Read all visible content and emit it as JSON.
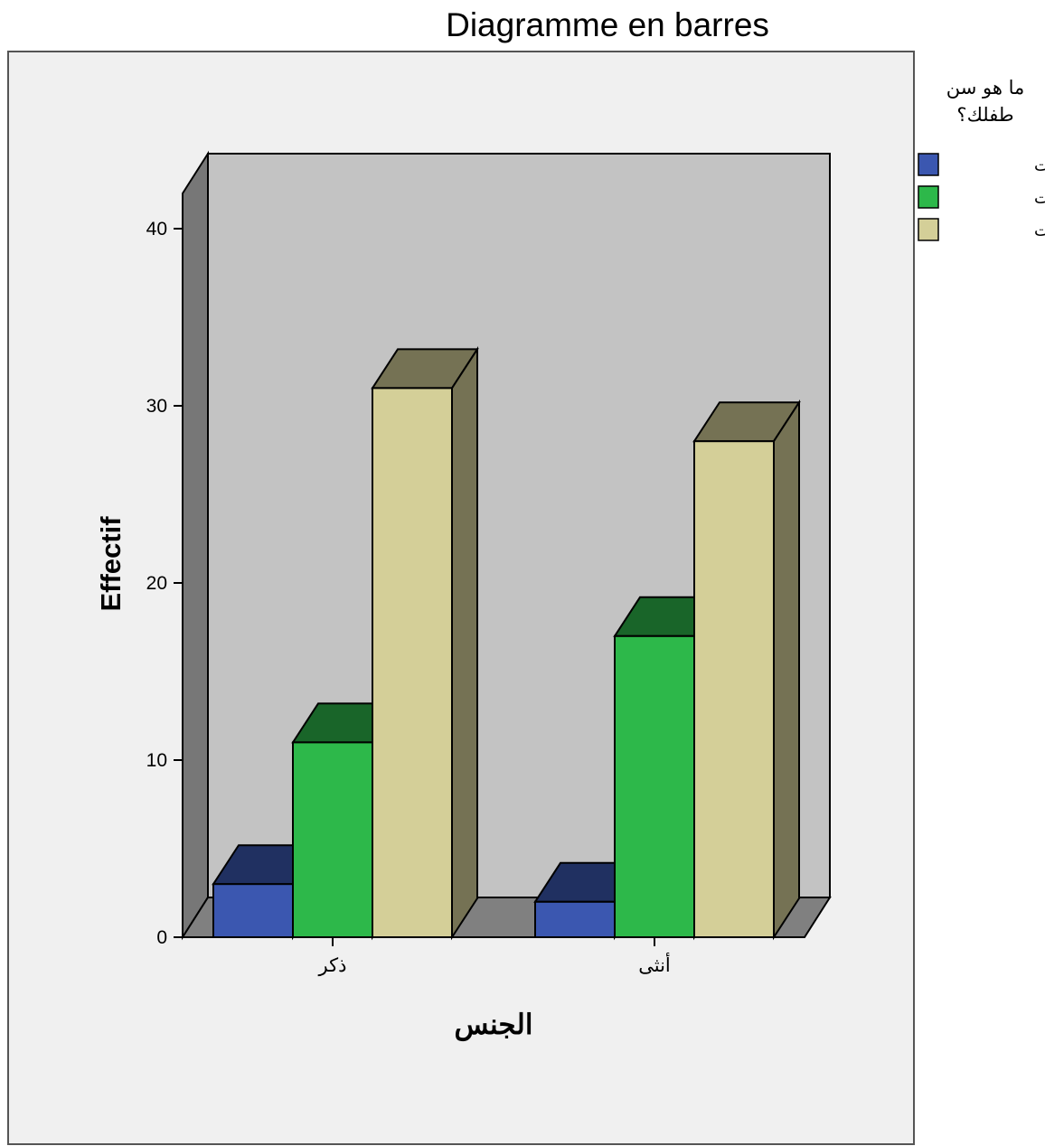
{
  "chart_data": {
    "type": "bar",
    "title": "Diagramme en barres",
    "xlabel": "الجنس",
    "ylabel": "Effectif",
    "categories": [
      "ذكر",
      "أنثى"
    ],
    "series": [
      {
        "name": "ثلاث سنوات",
        "values": [
          3,
          2
        ],
        "color": "#3b57b0"
      },
      {
        "name": "أربعة سنوات",
        "values": [
          11,
          17
        ],
        "color": "#2db84a"
      },
      {
        "name": "خمسة سنوات",
        "values": [
          31,
          28
        ],
        "color": "#d4cf98"
      }
    ],
    "ylim": [
      0,
      40
    ],
    "yticks": [
      0,
      10,
      20,
      30,
      40
    ],
    "legend_title": [
      "ما هو سن",
      "طفلك؟"
    ],
    "legend_position": "right",
    "grid": false,
    "style": "3d"
  }
}
